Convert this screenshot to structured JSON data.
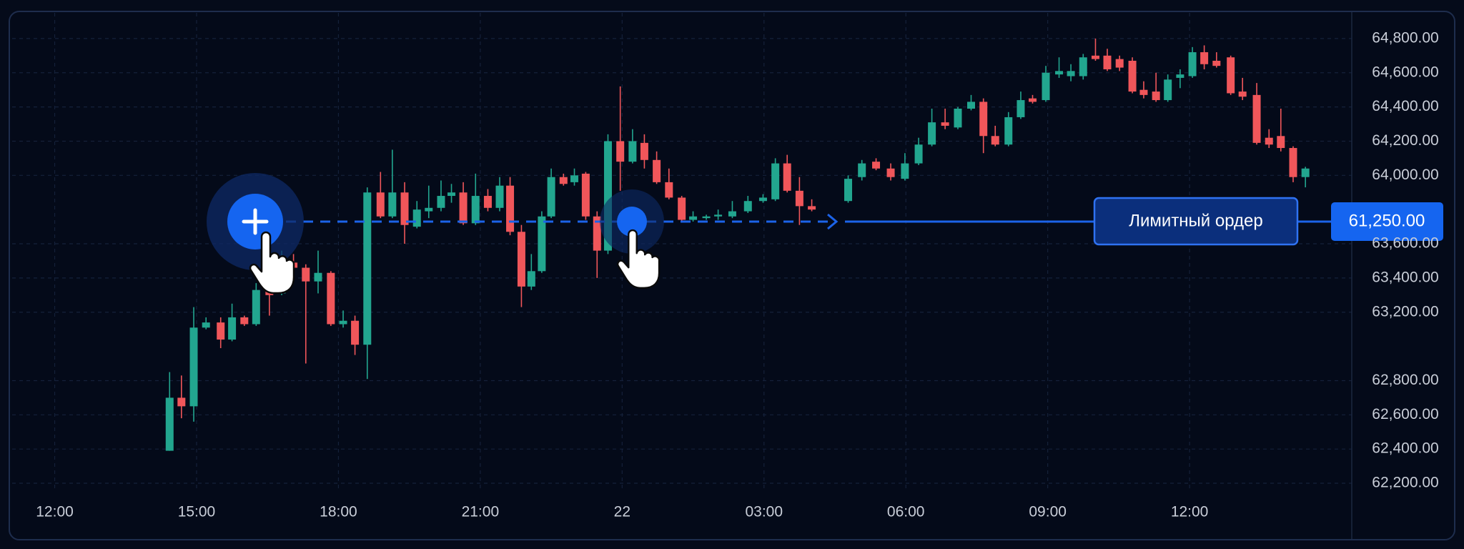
{
  "chart_data": {
    "type": "candlestick",
    "up_color": "#22a68f",
    "down_color": "#f0565a",
    "grid": true,
    "xlim": [
      11.1,
      39.43
    ],
    "xticks": [
      {
        "value": 12,
        "label": "12:00"
      },
      {
        "value": 15,
        "label": "15:00"
      },
      {
        "value": 18,
        "label": "18:00"
      },
      {
        "value": 21,
        "label": "21:00"
      },
      {
        "value": 24,
        "label": "22"
      },
      {
        "value": 27,
        "label": "03:00"
      },
      {
        "value": 30,
        "label": "06:00"
      },
      {
        "value": 33,
        "label": "09:00"
      },
      {
        "value": 36,
        "label": "12:00"
      }
    ],
    "ylim": [
      62150,
      64950
    ],
    "yticks": [
      {
        "value": 64800,
        "label": "64,800.00"
      },
      {
        "value": 64600,
        "label": "64,600.00"
      },
      {
        "value": 64400,
        "label": "64,400.00"
      },
      {
        "value": 64200,
        "label": "64,200.00"
      },
      {
        "value": 64000,
        "label": "64,000.00"
      },
      {
        "value": 63600,
        "label": "63,600.00"
      },
      {
        "value": 63400,
        "label": "63,400.00"
      },
      {
        "value": 63200,
        "label": "63,200.00"
      },
      {
        "value": 62800,
        "label": "62,800.00"
      },
      {
        "value": 62600,
        "label": "62,600.00"
      },
      {
        "value": 62400,
        "label": "62,400.00"
      },
      {
        "value": 62200,
        "label": "62,200.00"
      }
    ],
    "x": [
      14.43,
      14.68,
      14.94,
      15.2,
      15.51,
      15.75,
      16.01,
      16.26,
      16.54,
      16.8,
      17.05,
      17.31,
      17.57,
      17.84,
      18.1,
      18.35,
      18.61,
      18.89,
      19.14,
      19.4,
      19.66,
      19.91,
      20.17,
      20.39,
      20.64,
      20.9,
      21.16,
      21.41,
      21.63,
      21.87,
      22.08,
      22.3,
      22.5,
      22.76,
      22.99,
      23.23,
      23.47,
      23.7,
      23.96,
      24.22,
      24.47,
      24.73,
      24.99,
      25.26,
      25.5,
      25.78,
      26.03,
      26.33,
      26.66,
      26.98,
      27.24,
      27.49,
      27.75,
      28.01,
      28.78,
      29.07,
      29.37,
      29.68,
      29.98,
      30.27,
      30.55,
      30.83,
      31.1,
      31.38,
      31.64,
      31.89,
      32.17,
      32.43,
      32.68,
      32.96,
      33.24,
      33.49,
      33.75,
      34.01,
      34.26,
      34.52,
      34.79,
      35.03,
      35.29,
      35.54,
      35.8,
      36.06,
      36.31,
      36.57,
      36.87,
      37.12,
      37.42,
      37.68,
      37.93,
      38.19,
      38.45
    ],
    "open": [
      62390,
      62700,
      62650,
      63110,
      63140,
      63040,
      63170,
      63130,
      63330,
      63310,
      63490,
      63460,
      63380,
      63430,
      63130,
      63150,
      63010,
      63900,
      63760,
      63900,
      63700,
      63790,
      63810,
      63880,
      63900,
      63720,
      63880,
      63810,
      63940,
      63670,
      63350,
      63440,
      63760,
      63990,
      63960,
      64010,
      63760,
      63560,
      64200,
      64080,
      64190,
      64090,
      63960,
      63870,
      63740,
      63750,
      63760,
      63760,
      63790,
      63850,
      63860,
      64070,
      63910,
      63820,
      63850,
      63990,
      64080,
      64040,
      63980,
      64070,
      64180,
      64310,
      64280,
      64390,
      64430,
      64230,
      64180,
      64340,
      64450,
      64440,
      64590,
      64580,
      64580,
      64700,
      64700,
      64680,
      64670,
      64500,
      64490,
      64440,
      64570,
      64580,
      64720,
      64670,
      64690,
      64490,
      64470,
      64220,
      64230,
      64160,
      63990
    ],
    "close": [
      62700,
      62650,
      63110,
      63140,
      63040,
      63170,
      63130,
      63330,
      63300,
      63470,
      63460,
      63380,
      63430,
      63130,
      63150,
      63010,
      63900,
      63760,
      63900,
      63710,
      63800,
      63810,
      63880,
      63900,
      63720,
      63880,
      63810,
      63940,
      63670,
      63350,
      63440,
      63760,
      63990,
      63950,
      64000,
      63760,
      63560,
      64200,
      64080,
      64200,
      64090,
      63960,
      63870,
      63740,
      63760,
      63760,
      63770,
      63790,
      63850,
      63870,
      64070,
      63910,
      63820,
      63800,
      63980,
      64070,
      64040,
      63990,
      64070,
      64180,
      64310,
      64290,
      64390,
      64430,
      64230,
      64180,
      64340,
      64440,
      64430,
      64600,
      64610,
      64610,
      64690,
      64680,
      64620,
      64630,
      64490,
      64470,
      64440,
      64560,
      64590,
      64720,
      64650,
      64640,
      64480,
      64460,
      64190,
      64180,
      64160,
      63990,
      64040
    ],
    "high": [
      62850,
      62830,
      63230,
      63170,
      63170,
      63250,
      63180,
      63370,
      63420,
      63560,
      63540,
      63480,
      63560,
      63440,
      63210,
      63180,
      63930,
      64020,
      64150,
      63960,
      63850,
      63940,
      63970,
      63950,
      63960,
      64010,
      63920,
      63990,
      63990,
      63710,
      63540,
      63790,
      64040,
      64010,
      64040,
      64020,
      63790,
      64240,
      64520,
      64270,
      64240,
      64140,
      64040,
      63880,
      63790,
      63770,
      63800,
      63850,
      63880,
      63890,
      64100,
      64120,
      63990,
      63860,
      64000,
      64090,
      64100,
      64070,
      64130,
      64220,
      64390,
      64390,
      64400,
      64470,
      64450,
      64290,
      64370,
      64490,
      64470,
      64640,
      64690,
      64650,
      64710,
      64800,
      64740,
      64700,
      64690,
      64550,
      64600,
      64590,
      64620,
      64750,
      64760,
      64720,
      64700,
      64570,
      64540,
      64270,
      64390,
      64170,
      64050
    ],
    "low": [
      62390,
      62580,
      62560,
      63100,
      62990,
      63030,
      63120,
      63120,
      63180,
      63300,
      63380,
      62900,
      63310,
      63120,
      63110,
      62950,
      62810,
      63750,
      63750,
      63600,
      63690,
      63750,
      63790,
      63840,
      63710,
      63710,
      63790,
      63790,
      63650,
      63230,
      63330,
      63430,
      63750,
      63940,
      63940,
      63740,
      63400,
      63540,
      63910,
      64070,
      64040,
      63950,
      63860,
      63730,
      63730,
      63740,
      63740,
      63750,
      63780,
      63840,
      63850,
      63900,
      63710,
      63790,
      63840,
      63970,
      64030,
      63970,
      63970,
      64060,
      64170,
      64270,
      64270,
      64380,
      64130,
      64170,
      64170,
      64330,
      64420,
      64430,
      64570,
      64550,
      64560,
      64670,
      64610,
      64610,
      64480,
      64450,
      64430,
      64430,
      64510,
      64570,
      64620,
      64630,
      64470,
      64440,
      64180,
      64160,
      64140,
      63960,
      63930
    ],
    "order_label": "Лимитный ордер",
    "order_price_label": "61,250.00"
  }
}
